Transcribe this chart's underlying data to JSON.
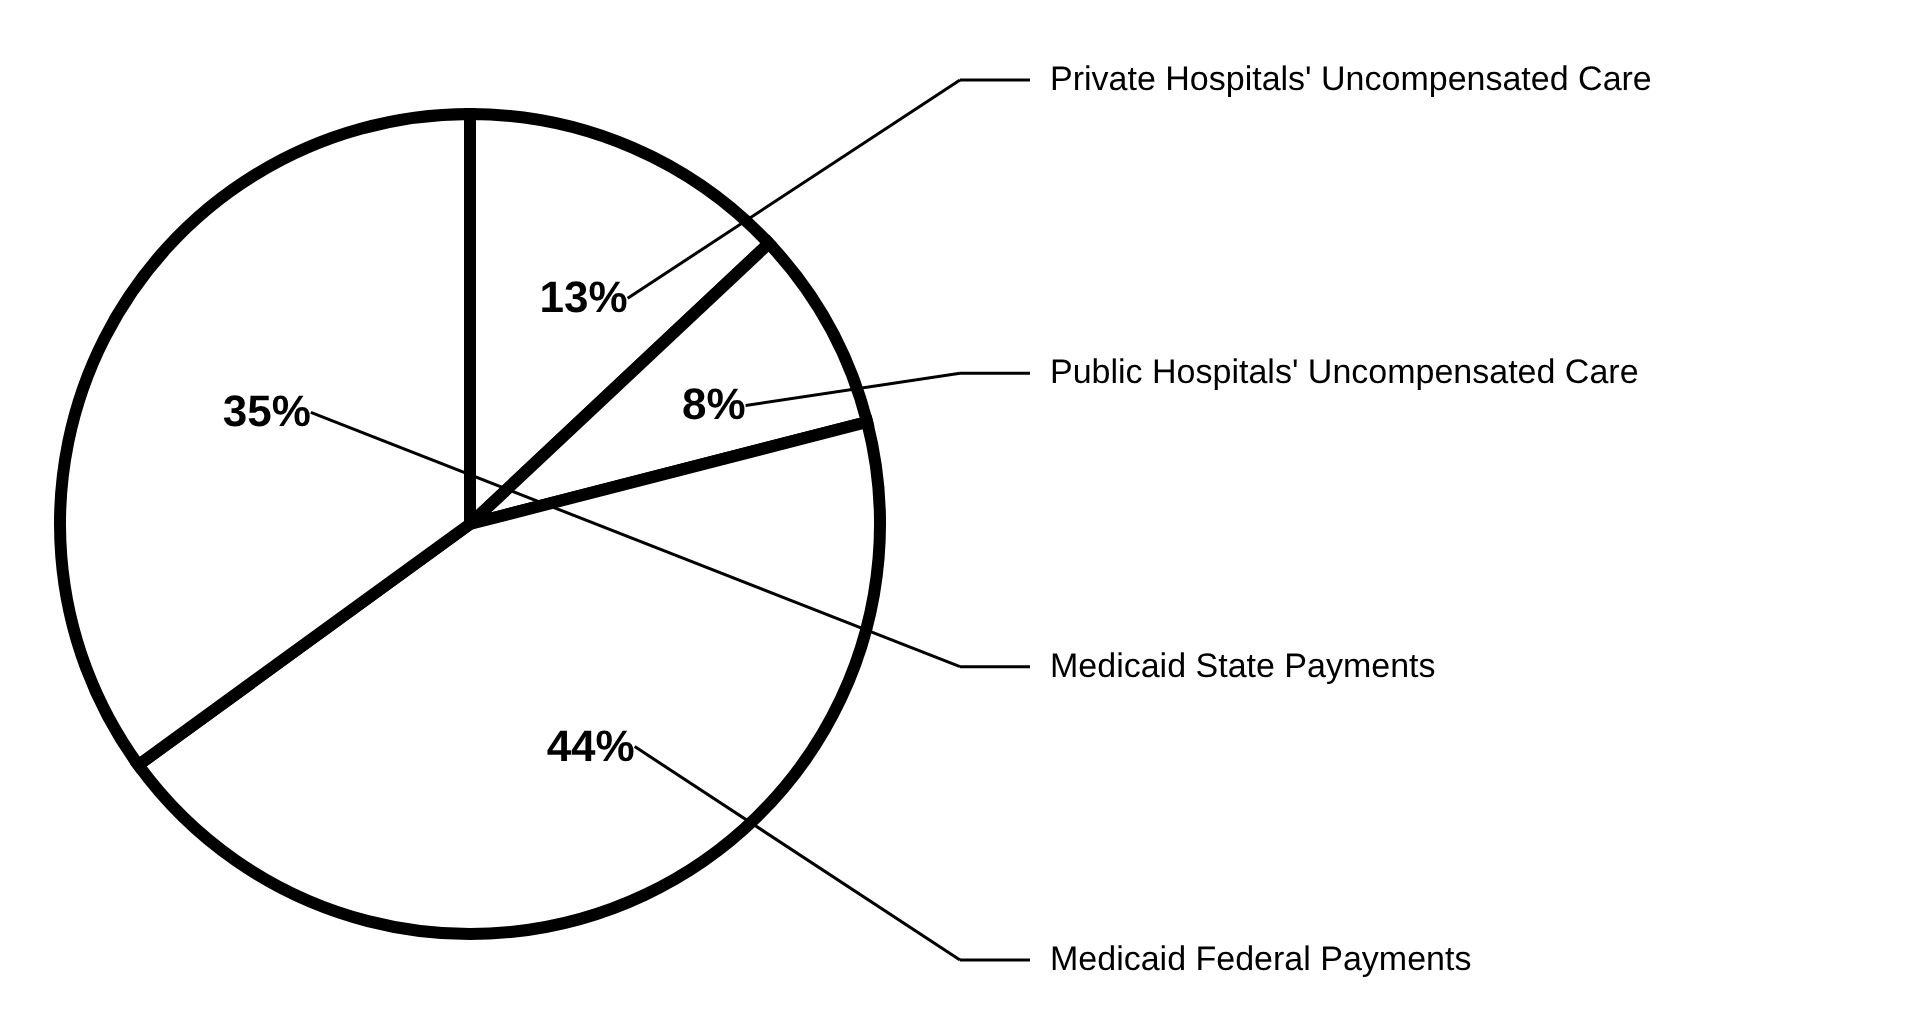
{
  "chart_data": {
    "type": "pie",
    "categories": [
      "Private Hospitals' Uncompensated Care",
      "Public Hospitals' Uncompensated Care",
      "Medicaid Federal Payments",
      "Medicaid State Payments"
    ],
    "values": [
      13,
      8,
      44,
      35
    ],
    "colors": [
      "#ffffff",
      "#ffffff",
      "#ffffff",
      "#ffffff"
    ],
    "value_labels": [
      "13%",
      "8%",
      "44%",
      "35%"
    ],
    "legend": "right"
  }
}
